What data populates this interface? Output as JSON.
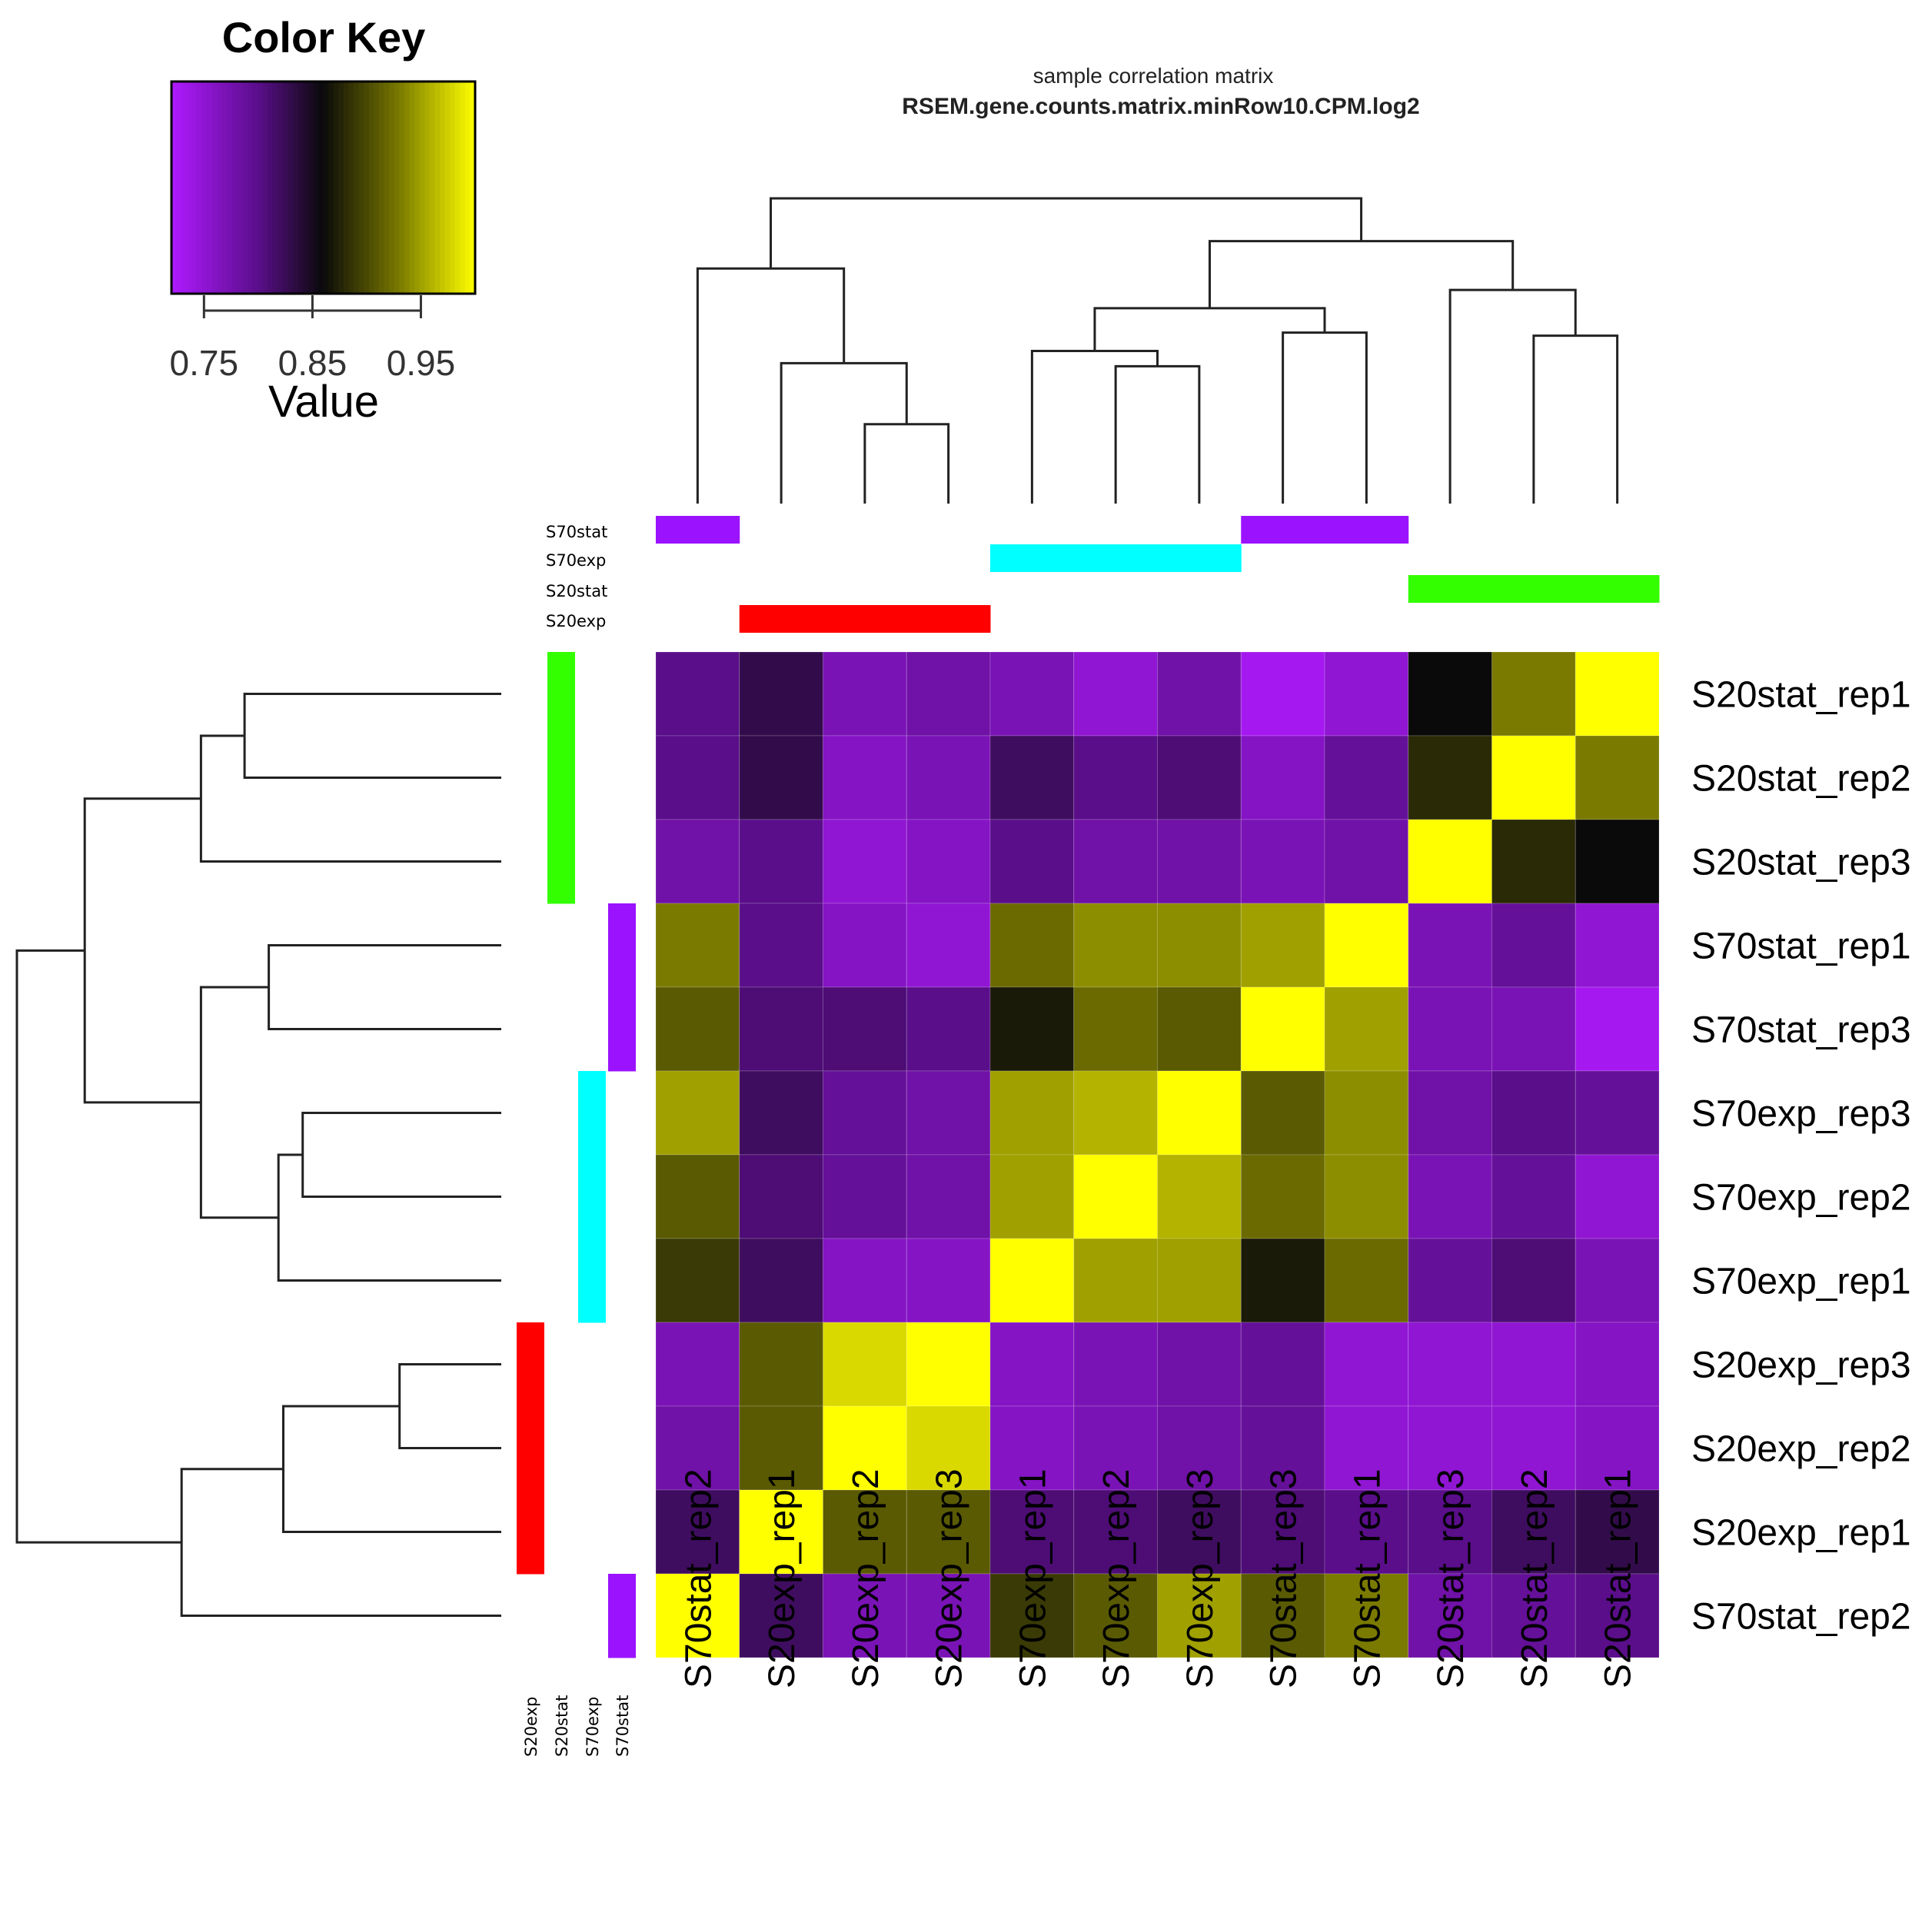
{
  "chart_data": {
    "type": "heatmap",
    "title": "sample correlation matrix",
    "subtitle": "RSEM.gene.counts.matrix.minRow10.CPM.log2",
    "color_key": {
      "title": "Color Key",
      "xlabel": "Value",
      "range": [
        0.72,
        1.0
      ],
      "ticks": [
        0.75,
        0.85,
        0.95
      ],
      "tick_labels": [
        "0.75",
        "0.85",
        "0.95"
      ],
      "stops": [
        {
          "value": 0.72,
          "color": "#b01aff"
        },
        {
          "value": 0.8,
          "color": "#5a0e8a"
        },
        {
          "value": 0.86,
          "color": "#0a0a0a"
        },
        {
          "value": 0.93,
          "color": "#7a7a00"
        },
        {
          "value": 1.0,
          "color": "#ffff00"
        }
      ]
    },
    "columns": [
      "S70stat_rep2",
      "S20exp_rep1",
      "S20exp_rep2",
      "S20exp_rep3",
      "S70exp_rep1",
      "S70exp_rep2",
      "S70exp_rep3",
      "S70stat_rep3",
      "S70stat_rep1",
      "S20stat_rep3",
      "S20stat_rep2",
      "S20stat_rep1"
    ],
    "rows": [
      "S20stat_rep1",
      "S20stat_rep2",
      "S20stat_rep3",
      "S70stat_rep1",
      "S70stat_rep3",
      "S70exp_rep3",
      "S70exp_rep2",
      "S70exp_rep1",
      "S20exp_rep3",
      "S20exp_rep2",
      "S20exp_rep1",
      "S70stat_rep2"
    ],
    "values": [
      [
        0.8,
        0.83,
        0.77,
        0.78,
        0.77,
        0.75,
        0.78,
        0.73,
        0.75,
        0.86,
        0.93,
        1.0
      ],
      [
        0.8,
        0.83,
        0.76,
        0.77,
        0.82,
        0.8,
        0.81,
        0.76,
        0.79,
        0.88,
        1.0,
        0.93
      ],
      [
        0.78,
        0.8,
        0.75,
        0.76,
        0.8,
        0.78,
        0.78,
        0.77,
        0.78,
        1.0,
        0.88,
        0.86
      ],
      [
        0.93,
        0.8,
        0.76,
        0.75,
        0.92,
        0.94,
        0.94,
        0.95,
        1.0,
        0.77,
        0.79,
        0.75
      ],
      [
        0.91,
        0.81,
        0.81,
        0.8,
        0.87,
        0.92,
        0.91,
        1.0,
        0.95,
        0.77,
        0.77,
        0.73
      ],
      [
        0.95,
        0.82,
        0.79,
        0.78,
        0.95,
        0.96,
        1.0,
        0.91,
        0.94,
        0.78,
        0.8,
        0.79
      ],
      [
        0.91,
        0.81,
        0.79,
        0.78,
        0.95,
        1.0,
        0.96,
        0.92,
        0.94,
        0.77,
        0.79,
        0.75
      ],
      [
        0.89,
        0.82,
        0.76,
        0.76,
        1.0,
        0.95,
        0.95,
        0.87,
        0.92,
        0.79,
        0.81,
        0.77
      ],
      [
        0.77,
        0.91,
        0.98,
        1.0,
        0.76,
        0.77,
        0.78,
        0.79,
        0.75,
        0.75,
        0.75,
        0.76
      ],
      [
        0.78,
        0.91,
        1.0,
        0.98,
        0.76,
        0.77,
        0.78,
        0.79,
        0.75,
        0.75,
        0.75,
        0.76
      ],
      [
        0.82,
        1.0,
        0.91,
        0.91,
        0.81,
        0.81,
        0.82,
        0.81,
        0.8,
        0.8,
        0.82,
        0.83
      ],
      [
        1.0,
        0.82,
        0.77,
        0.77,
        0.89,
        0.91,
        0.95,
        0.91,
        0.93,
        0.78,
        0.79,
        0.8
      ]
    ],
    "group_legend": [
      "S70stat",
      "S70exp",
      "S20stat",
      "S20exp"
    ],
    "group_legend_bottom": [
      "S20exp",
      "S20stat",
      "S70exp",
      "S70stat"
    ],
    "group_colors": {
      "S70stat": "#9b12ff",
      "S70exp": "#00ffff",
      "S20stat": "#33ff00",
      "S20exp": "#ff0000"
    },
    "column_groups": [
      "S70stat",
      "S20exp",
      "S20exp",
      "S20exp",
      "S70exp",
      "S70exp",
      "S70exp",
      "S70stat",
      "S70stat",
      "S20stat",
      "S20stat",
      "S20stat"
    ],
    "row_groups": [
      "S20stat",
      "S20stat",
      "S20stat",
      "S70stat",
      "S70stat",
      "S70exp",
      "S70exp",
      "S70exp",
      "S20exp",
      "S20exp",
      "S20exp",
      "S70stat"
    ],
    "column_dendrogram": [
      {
        "a": 2,
        "b": 3,
        "h": 0.26
      },
      {
        "a": 1,
        "b": 12,
        "h": 0.46
      },
      {
        "a": 0,
        "b": 13,
        "h": 0.77
      },
      {
        "a": 5,
        "b": 6,
        "h": 0.45
      },
      {
        "a": 4,
        "b": 15,
        "h": 0.5
      },
      {
        "a": 7,
        "b": 8,
        "h": 0.56
      },
      {
        "a": 16,
        "b": 17,
        "h": 0.64
      },
      {
        "a": 10,
        "b": 11,
        "h": 0.55
      },
      {
        "a": 9,
        "b": 19,
        "h": 0.7
      },
      {
        "a": 18,
        "b": 20,
        "h": 0.86
      },
      {
        "a": 14,
        "b": 21,
        "h": 1.0
      }
    ],
    "row_dendrogram": [
      {
        "a": 0,
        "b": 1,
        "h": 0.53
      },
      {
        "a": 12,
        "b": 2,
        "h": 0.62
      },
      {
        "a": 3,
        "b": 4,
        "h": 0.48
      },
      {
        "a": 5,
        "b": 6,
        "h": 0.41
      },
      {
        "a": 15,
        "b": 7,
        "h": 0.46
      },
      {
        "a": 14,
        "b": 16,
        "h": 0.62
      },
      {
        "a": 13,
        "b": 17,
        "h": 0.86
      },
      {
        "a": 8,
        "b": 9,
        "h": 0.21
      },
      {
        "a": 19,
        "b": 10,
        "h": 0.45
      },
      {
        "a": 20,
        "b": 11,
        "h": 0.66
      },
      {
        "a": 18,
        "b": 21,
        "h": 1.0
      }
    ]
  }
}
